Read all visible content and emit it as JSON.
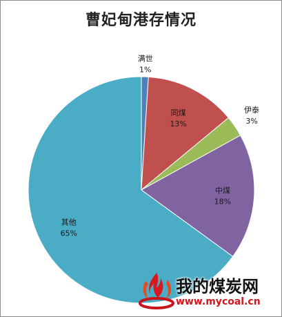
{
  "chart_data": {
    "type": "pie",
    "title": "曹妃甸港存情况",
    "slices": [
      {
        "label": "满世",
        "value": 1,
        "value_label": "1%",
        "color": "#4f81bd"
      },
      {
        "label": "同煤",
        "value": 13,
        "value_label": "13%",
        "color": "#c0504d"
      },
      {
        "label": "伊泰",
        "value": 3,
        "value_label": "3%",
        "color": "#9bbb59"
      },
      {
        "label": "中煤",
        "value": 18,
        "value_label": "18%",
        "color": "#8064a2"
      },
      {
        "label": "其他",
        "value": 65,
        "value_label": "65%",
        "color": "#4bacc6"
      }
    ],
    "start": "top",
    "direction": "clockwise",
    "legend": "none"
  },
  "watermark": {
    "text": "我的煤炭网",
    "url": "www.mycoal.cn",
    "logo_icon": "flame-logo-icon"
  }
}
